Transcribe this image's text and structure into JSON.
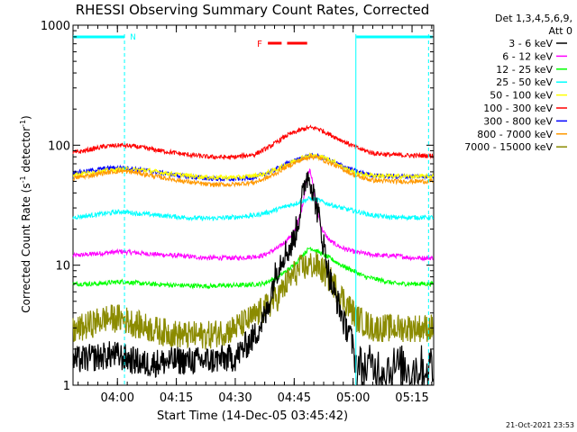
{
  "chart_data": {
    "type": "line",
    "title": "RHESSI Observing Summary Count Rates, Corrected",
    "xlabel": "Start Time (14-Dec-05 03:45:42)",
    "ylabel_main": "Corrected Count Rate (s",
    "ylabel_sup1": "-1",
    "ylabel_mid": " detector",
    "ylabel_sup2": "-1",
    "ylabel_end": ")",
    "yscale": "log",
    "ylim": [
      1,
      1000
    ],
    "xlim_minutes": [
      3.7,
      95.5
    ],
    "x_ticks": [
      {
        "minutes": 15.0,
        "label": "04:00"
      },
      {
        "minutes": 30.0,
        "label": "04:15"
      },
      {
        "minutes": 45.0,
        "label": "04:30"
      },
      {
        "minutes": 60.0,
        "label": "04:45"
      },
      {
        "minutes": 75.0,
        "label": "05:00"
      },
      {
        "minutes": 90.0,
        "label": "05:15"
      }
    ],
    "y_ticks": [
      {
        "value": 1,
        "label": "1"
      },
      {
        "value": 10,
        "label": "10"
      },
      {
        "value": 100,
        "label": "100"
      },
      {
        "value": 1000,
        "label": "1000"
      }
    ],
    "legend_header": [
      "Det 1,3,4,5,6,9,",
      "Att 0"
    ],
    "legend_position": "right, outside",
    "series": [
      {
        "name": "3 - 6 keV",
        "color": "#000000",
        "x": [
          3.7,
          14,
          22,
          30,
          38,
          45,
          50,
          53,
          55,
          57,
          59,
          60,
          61,
          62,
          63,
          64,
          65,
          66,
          67,
          68,
          69,
          70,
          71,
          72,
          73,
          74,
          75.5
        ],
        "y": [
          1.6,
          1.8,
          1.5,
          1.6,
          1.6,
          1.7,
          2.6,
          4,
          8,
          12,
          14,
          17,
          23,
          35,
          55,
          55,
          38,
          28,
          18,
          12,
          8,
          6,
          5,
          4,
          3,
          3,
          1.6
        ],
        "after": {
          "x_start": 76,
          "x_end": 95.5,
          "value": 1.4
        }
      },
      {
        "name": "6 - 12 keV",
        "color": "#ff00ff",
        "x": [
          3.7,
          10,
          16,
          22,
          30,
          38,
          46,
          52,
          56,
          58,
          60,
          61,
          62,
          63,
          64,
          65,
          66,
          67,
          69,
          72,
          75,
          78,
          82,
          86,
          90,
          95.5
        ],
        "y": [
          12,
          12.5,
          13,
          12.5,
          12,
          11.5,
          11.5,
          12,
          14,
          16,
          19,
          23,
          30,
          48,
          65,
          42,
          28,
          20,
          16,
          14,
          13,
          12.5,
          12,
          12,
          11.5,
          11.5
        ]
      },
      {
        "name": "12 - 25 keV",
        "color": "#00ff00",
        "x": [
          3.7,
          10,
          16,
          22,
          30,
          38,
          46,
          52,
          56,
          60,
          62,
          64,
          66,
          68,
          70,
          72,
          75,
          78,
          82,
          86,
          90,
          95.5
        ],
        "y": [
          7,
          7,
          7.3,
          7,
          6.8,
          6.7,
          6.8,
          7,
          8,
          10,
          12,
          14,
          13,
          12,
          11,
          10,
          9,
          8,
          7.5,
          7,
          7,
          7
        ]
      },
      {
        "name": "25 - 50 keV",
        "color": "#00ffff",
        "x": [
          3.7,
          8,
          12,
          16,
          20,
          26,
          32,
          38,
          44,
          50,
          54,
          58,
          62,
          64,
          66,
          68,
          72,
          76,
          80,
          85,
          90,
          95.5
        ],
        "y": [
          25,
          26,
          27,
          28,
          27,
          26,
          25,
          24.5,
          25,
          26,
          28,
          31,
          34,
          36,
          35,
          33,
          30,
          28,
          26,
          25,
          25,
          25
        ]
      },
      {
        "name": "50 - 100 keV",
        "color": "#ffff00",
        "x": [
          3.7,
          10,
          16,
          22,
          30,
          38,
          46,
          52,
          56,
          60,
          62,
          64,
          66,
          68,
          70,
          72,
          74,
          76,
          80,
          86,
          90,
          95.5
        ],
        "y": [
          57,
          60,
          63,
          62,
          57,
          54,
          54,
          57,
          64,
          74,
          79,
          82,
          81,
          78,
          73,
          67,
          62,
          58,
          56,
          55,
          55,
          55
        ]
      },
      {
        "name": "100 - 300 keV",
        "color": "#ff0000",
        "x": [
          3.7,
          8,
          12,
          16,
          20,
          26,
          32,
          38,
          44,
          50,
          54,
          58,
          62,
          64,
          66,
          68,
          72,
          76,
          80,
          85,
          90,
          95.5
        ],
        "y": [
          86,
          92,
          98,
          100,
          97,
          90,
          84,
          80,
          79,
          84,
          98,
          120,
          135,
          140,
          138,
          128,
          110,
          95,
          86,
          83,
          82,
          82
        ]
      },
      {
        "name": "300 - 800 keV",
        "color": "#0000ff",
        "x": [
          3.7,
          8,
          12,
          16,
          20,
          26,
          32,
          38,
          44,
          50,
          54,
          58,
          62,
          64,
          66,
          68,
          72,
          76,
          80,
          85,
          90,
          95.5
        ],
        "y": [
          59,
          61,
          64,
          65,
          63,
          59,
          55,
          53,
          52,
          54,
          60,
          70,
          78,
          82,
          81,
          77,
          68,
          60,
          56,
          55,
          55,
          55
        ]
      },
      {
        "name": "800 - 7000 keV",
        "color": "#ff9900",
        "x": [
          3.7,
          8,
          12,
          16,
          20,
          26,
          32,
          38,
          44,
          50,
          54,
          58,
          62,
          64,
          66,
          68,
          72,
          76,
          80,
          85,
          90,
          95.5
        ],
        "y": [
          53,
          56,
          59,
          61,
          59,
          54,
          50,
          47,
          47,
          49,
          55,
          66,
          76,
          80,
          79,
          74,
          64,
          55,
          51,
          50,
          50,
          50
        ]
      },
      {
        "name": "7000 - 15000 keV",
        "color": "#8b8b00",
        "x": [
          3.7,
          8,
          12,
          16,
          20,
          26,
          32,
          38,
          44,
          48,
          52,
          56,
          58,
          60,
          62,
          64,
          66,
          68,
          70,
          72,
          74,
          76,
          80,
          84,
          88,
          92,
          95.5
        ],
        "y": [
          2.8,
          3.2,
          3.6,
          3.6,
          3.2,
          2.8,
          2.6,
          2.6,
          2.9,
          3.4,
          4.2,
          5.5,
          7,
          8.5,
          9.5,
          10,
          9.8,
          8.5,
          7,
          5.5,
          4.5,
          3.6,
          3,
          3,
          3,
          3,
          3
        ]
      }
    ],
    "attenuator_state_bar": {
      "color": "#00ffff",
      "label": "N",
      "intervals_minutes": [
        [
          3.7,
          16.8
        ],
        [
          75.8,
          95.2
        ]
      ]
    },
    "flare_marker": {
      "color": "#ff0000",
      "label": "F",
      "dash_intervals_minutes": [
        [
          53.3,
          56.8
        ],
        [
          58.2,
          63.3
        ]
      ]
    },
    "vertical_dashed_lines_minutes": [
      16.8,
      94.2
    ],
    "vertical_solid_lines_minutes": [
      75.7
    ]
  },
  "footer": {
    "timestamp": "21-Oct-2021 23:53"
  }
}
